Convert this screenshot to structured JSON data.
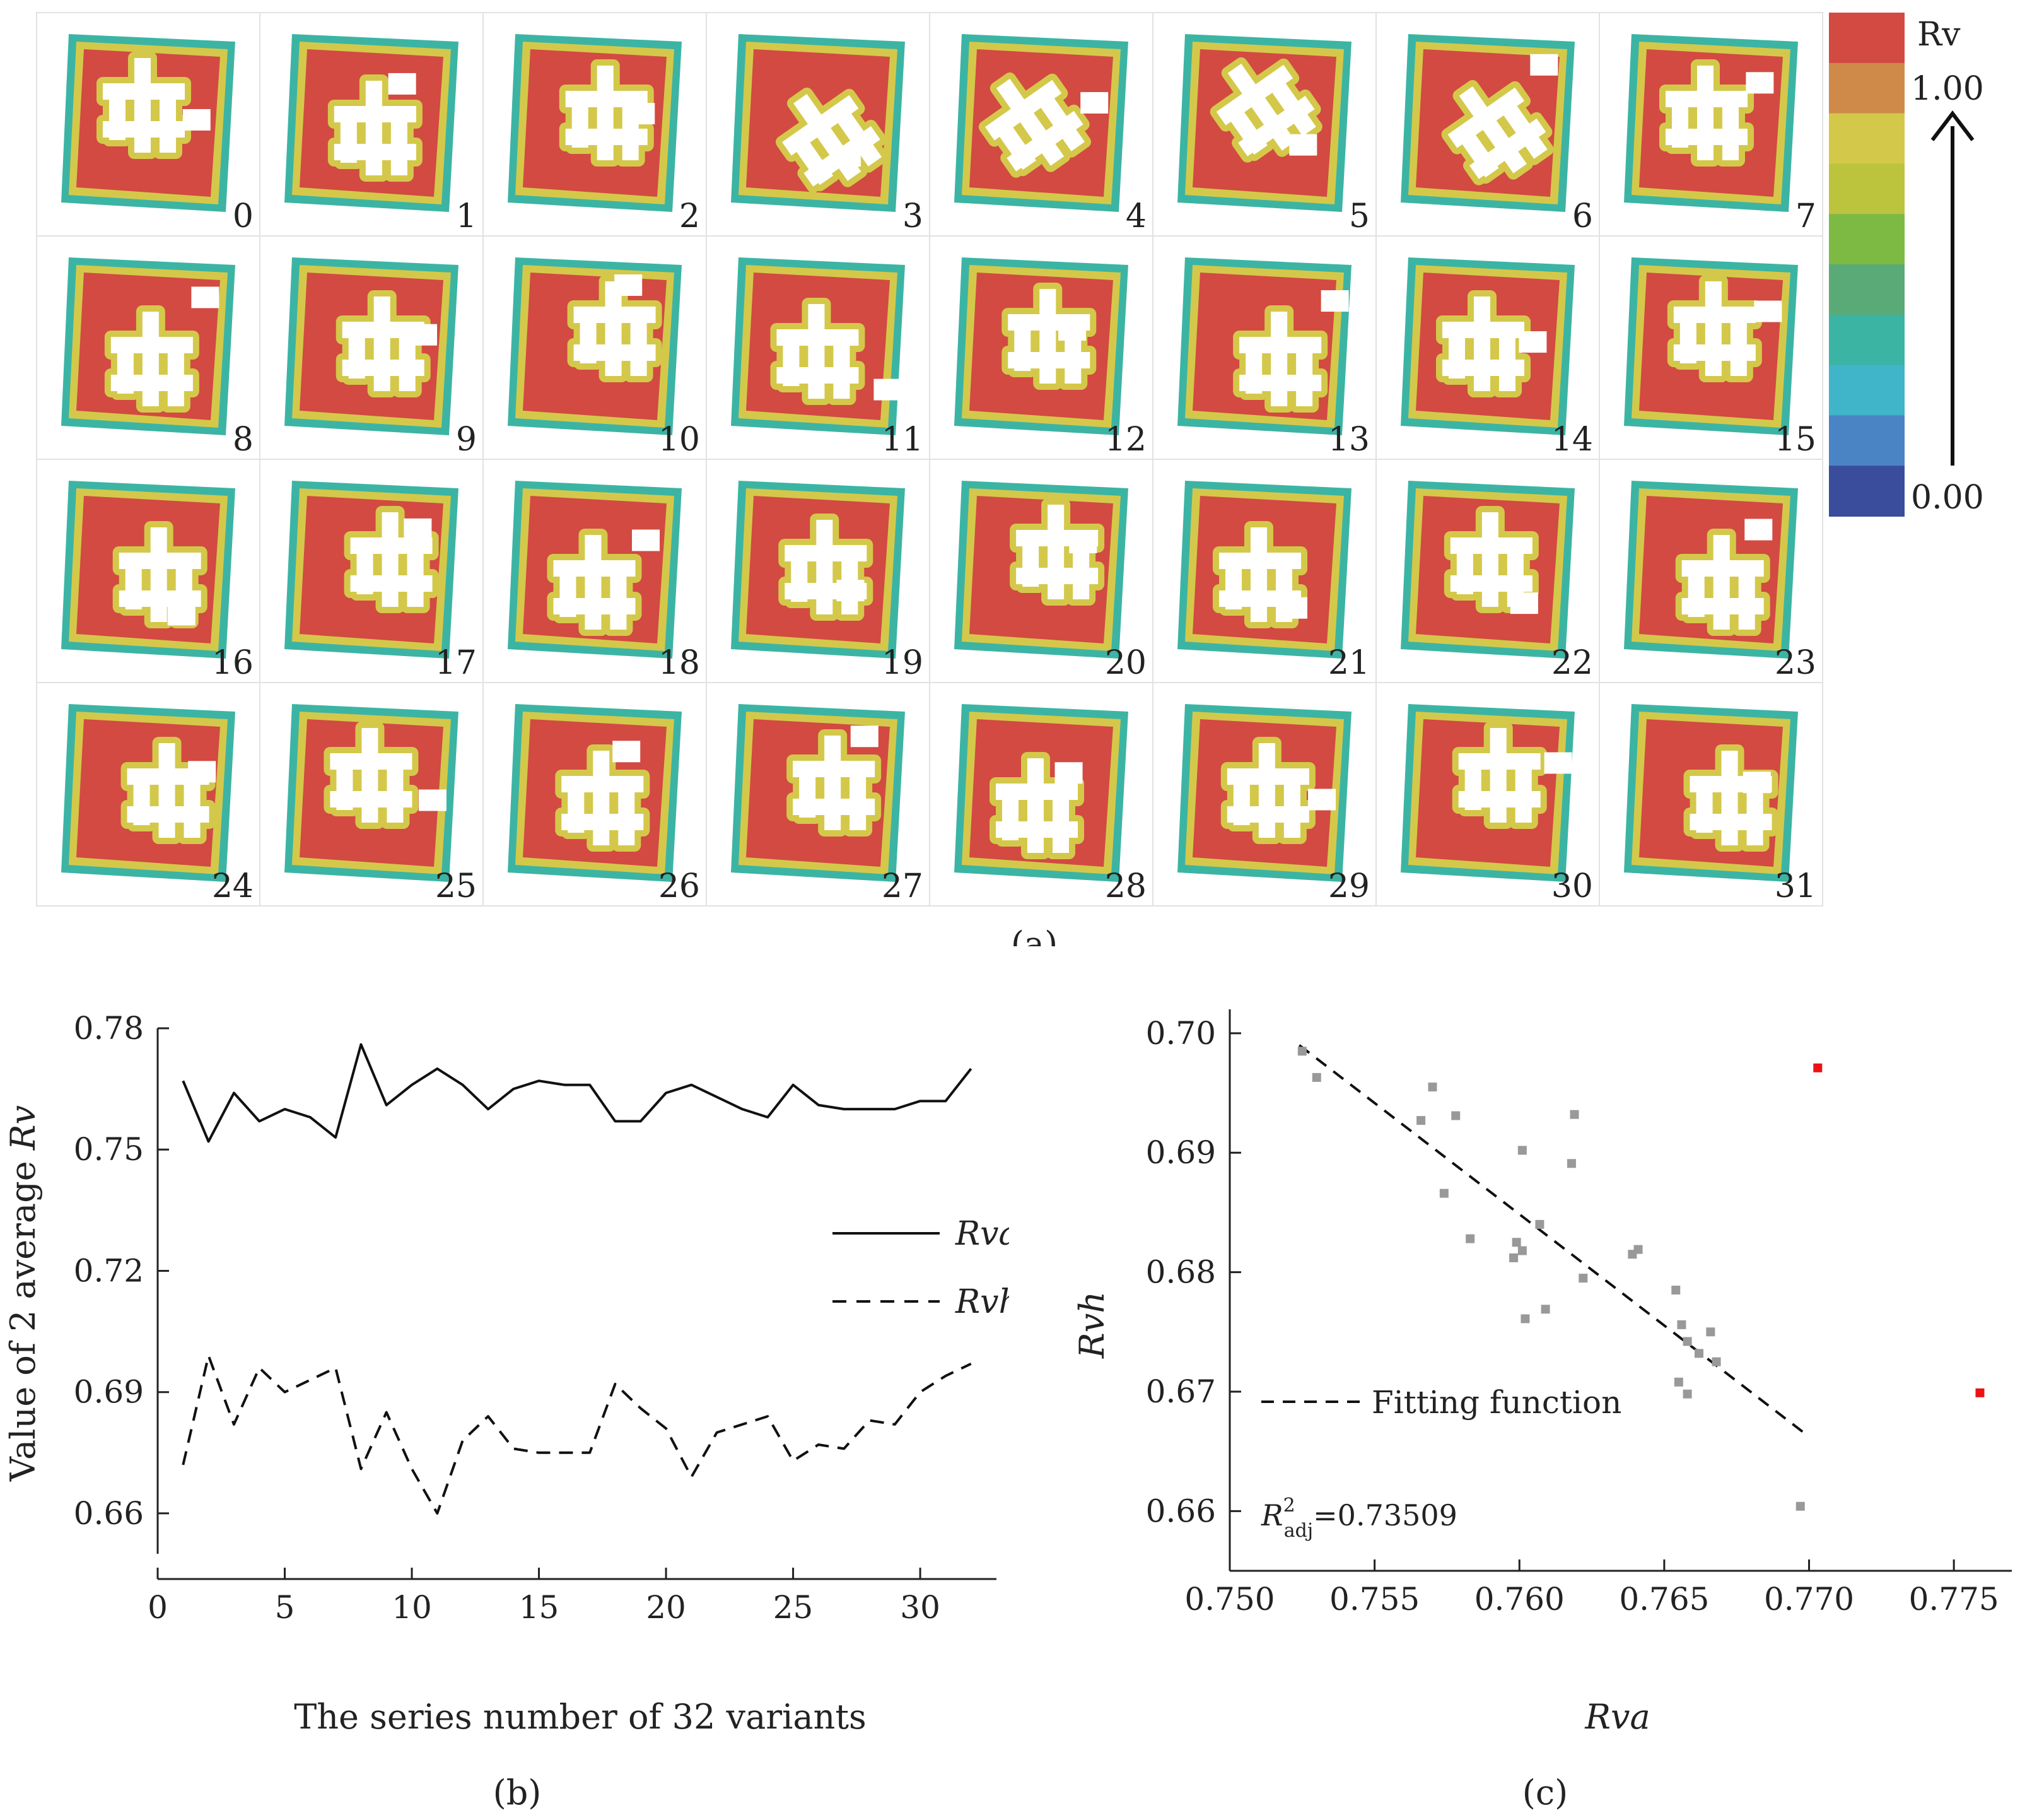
{
  "panel_labels": {
    "a": "(a)",
    "b": "(b)",
    "c": "(c)"
  },
  "panel_a": {
    "variant_labels": [
      "0",
      "1",
      "2",
      "3",
      "4",
      "5",
      "6",
      "7",
      "8",
      "9",
      "10",
      "11",
      "12",
      "13",
      "14",
      "15",
      "16",
      "17",
      "18",
      "19",
      "20",
      "21",
      "22",
      "23",
      "24",
      "25",
      "26",
      "27",
      "28",
      "29",
      "30",
      "31"
    ],
    "colorbar": {
      "title": "Rv",
      "max_label": "1.00",
      "min_label": "0.00",
      "colors": [
        "#d24a42",
        "#cf8a4a",
        "#d4c84a",
        "#bcc43e",
        "#7cba44",
        "#5aaa78",
        "#3cb4a4",
        "#40b4c8",
        "#4a84c4",
        "#3a4c9c"
      ]
    },
    "heatmap_colors": {
      "red": "#d24a42",
      "orange": "#d8a24a",
      "yellow": "#d4c84a",
      "green": "#8cc44c",
      "teal": "#3cb4a4",
      "blue": "#3a5ca8",
      "building": "#ffffff"
    }
  },
  "chart_data": [
    {
      "id": "b",
      "type": "line",
      "title": "",
      "xlabel": "The series number of 32 variants",
      "ylabel": "Value of 2 average Rv",
      "ylabel_parts": {
        "prefix": "Value of 2 average ",
        "italic": "Rv"
      },
      "xlim": [
        0,
        33
      ],
      "ylim": [
        0.65,
        0.78
      ],
      "xticks": [
        0,
        5,
        10,
        15,
        20,
        25,
        30
      ],
      "xtick_labels": [
        "0",
        "5",
        "10",
        "15",
        "20",
        "25",
        "30"
      ],
      "yticks": [
        0.66,
        0.69,
        0.72,
        0.75,
        0.78
      ],
      "ytick_labels": [
        "0.66",
        "0.69",
        "0.72",
        "0.75",
        "0.78"
      ],
      "x": [
        1,
        2,
        3,
        4,
        5,
        6,
        7,
        8,
        9,
        10,
        11,
        12,
        13,
        14,
        15,
        16,
        17,
        18,
        19,
        20,
        21,
        22,
        23,
        24,
        25,
        26,
        27,
        28,
        29,
        30,
        31,
        32
      ],
      "series": [
        {
          "name": "Rva",
          "style": "solid",
          "values": [
            0.767,
            0.752,
            0.764,
            0.757,
            0.76,
            0.758,
            0.753,
            0.776,
            0.761,
            0.766,
            0.77,
            0.766,
            0.76,
            0.765,
            0.767,
            0.766,
            0.766,
            0.757,
            0.757,
            0.764,
            0.766,
            0.763,
            0.76,
            0.758,
            0.766,
            0.761,
            0.76,
            0.76,
            0.76,
            0.762,
            0.762,
            0.77
          ]
        },
        {
          "name": "Rvh",
          "style": "dashed",
          "values": [
            0.672,
            0.699,
            0.682,
            0.696,
            0.69,
            0.693,
            0.696,
            0.671,
            0.685,
            0.671,
            0.66,
            0.678,
            0.684,
            0.676,
            0.675,
            0.675,
            0.675,
            0.692,
            0.686,
            0.681,
            0.669,
            0.68,
            0.682,
            0.684,
            0.673,
            0.677,
            0.676,
            0.683,
            0.682,
            0.69,
            0.694,
            0.697
          ]
        }
      ],
      "legend": [
        {
          "label": "Rva",
          "style": "solid"
        },
        {
          "label": "Rvh",
          "style": "dashed"
        }
      ],
      "legend_position": "center-right"
    },
    {
      "id": "c",
      "type": "scatter",
      "title": "",
      "xlabel": "Rva",
      "ylabel": "Rvh",
      "xlim": [
        0.75,
        0.777
      ],
      "ylim": [
        0.655,
        0.702
      ],
      "xticks": [
        0.75,
        0.755,
        0.76,
        0.765,
        0.77,
        0.775
      ],
      "xtick_labels": [
        "0.750",
        "0.755",
        "0.760",
        "0.765",
        "0.770",
        "0.775"
      ],
      "yticks": [
        0.66,
        0.67,
        0.68,
        0.69,
        0.7
      ],
      "ytick_labels": [
        "0.66",
        "0.67",
        "0.68",
        "0.69",
        "0.70"
      ],
      "points": [
        {
          "x": 0.7525,
          "y": 0.6985
        },
        {
          "x": 0.753,
          "y": 0.6963
        },
        {
          "x": 0.7566,
          "y": 0.6927
        },
        {
          "x": 0.757,
          "y": 0.6955
        },
        {
          "x": 0.7578,
          "y": 0.6931
        },
        {
          "x": 0.7574,
          "y": 0.6866
        },
        {
          "x": 0.7583,
          "y": 0.6828
        },
        {
          "x": 0.7598,
          "y": 0.6812
        },
        {
          "x": 0.7599,
          "y": 0.6825
        },
        {
          "x": 0.7601,
          "y": 0.6818
        },
        {
          "x": 0.7601,
          "y": 0.6902
        },
        {
          "x": 0.7602,
          "y": 0.6761
        },
        {
          "x": 0.7607,
          "y": 0.684
        },
        {
          "x": 0.7609,
          "y": 0.6769
        },
        {
          "x": 0.7619,
          "y": 0.6932
        },
        {
          "x": 0.7618,
          "y": 0.6891
        },
        {
          "x": 0.7622,
          "y": 0.6795
        },
        {
          "x": 0.7639,
          "y": 0.6815
        },
        {
          "x": 0.7641,
          "y": 0.6819
        },
        {
          "x": 0.7654,
          "y": 0.6785
        },
        {
          "x": 0.7656,
          "y": 0.6756
        },
        {
          "x": 0.7658,
          "y": 0.6742
        },
        {
          "x": 0.7662,
          "y": 0.6732
        },
        {
          "x": 0.7666,
          "y": 0.675
        },
        {
          "x": 0.7668,
          "y": 0.6725
        },
        {
          "x": 0.7655,
          "y": 0.6708
        },
        {
          "x": 0.7658,
          "y": 0.6698
        },
        {
          "x": 0.7697,
          "y": 0.6604
        }
      ],
      "outliers": [
        {
          "x": 0.7703,
          "y": 0.6971
        },
        {
          "x": 0.7759,
          "y": 0.6699
        }
      ],
      "fit_line": {
        "x": [
          0.7524,
          0.7698
        ],
        "y": [
          0.699,
          0.6666
        ]
      },
      "legend": [
        {
          "label": "Fitting function",
          "style": "dashed"
        }
      ],
      "annotation": {
        "r2_symbol": "R",
        "r2_sup": "2",
        "r2_sub": "adj",
        "r2_value": "=0.73509"
      },
      "point_color": "#999999",
      "outlier_color": "#ee1111"
    }
  ]
}
